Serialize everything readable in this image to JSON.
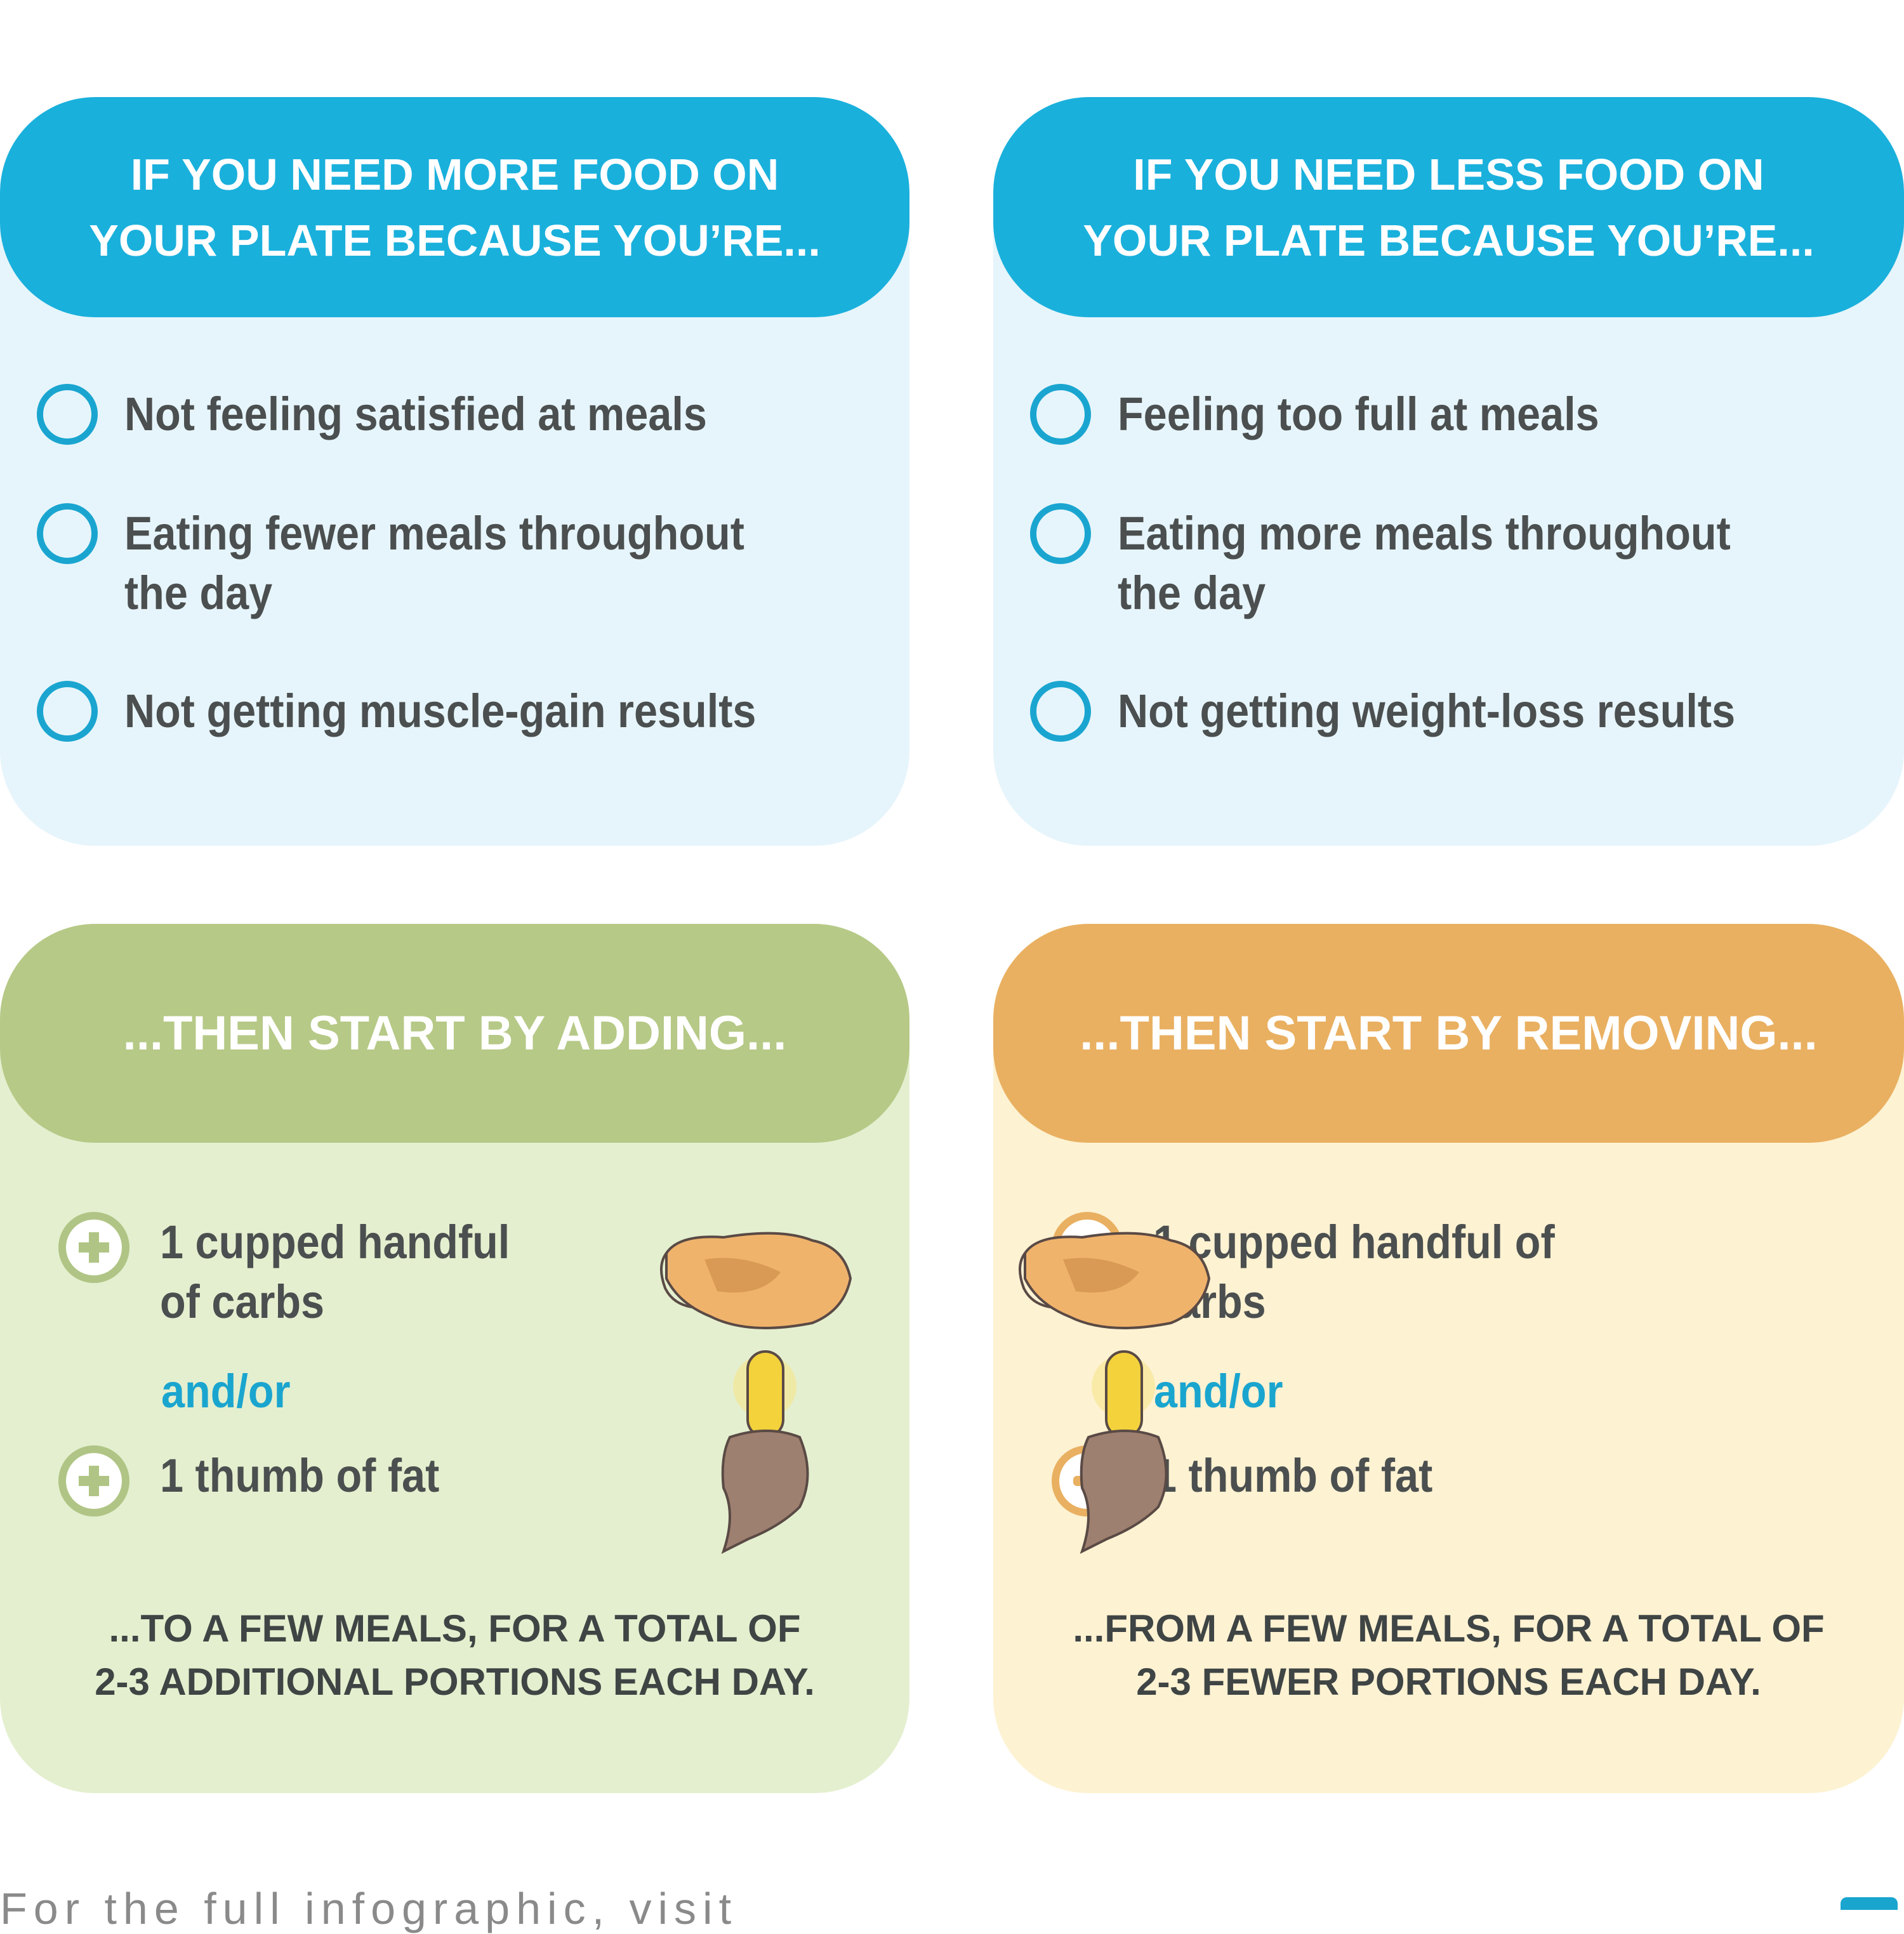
{
  "colors": {
    "blue_header": "#1ab0dc",
    "blue_body": "#e6f5fb",
    "green_header": "#b6c987",
    "green_body": "#e4efcf",
    "orange_header": "#e9b061",
    "orange_body": "#fdf2d2",
    "accent": "#1aa5cf",
    "text": "#4b4f4f"
  },
  "more": {
    "header": [
      "IF YOU NEED MORE FOOD ON",
      "YOUR PLATE BECAUSE YOU’RE..."
    ],
    "items": [
      {
        "icon": "circle-checkbox-icon",
        "lines": [
          "Not feeling satisfied at meals"
        ]
      },
      {
        "icon": "circle-checkbox-icon",
        "lines": [
          "Eating fewer meals throughout",
          "the day"
        ]
      },
      {
        "icon": "circle-checkbox-icon",
        "lines": [
          "Not getting muscle-gain results"
        ]
      }
    ]
  },
  "less": {
    "header": [
      "IF YOU NEED LESS FOOD ON",
      "YOUR PLATE BECAUSE YOU’RE..."
    ],
    "items": [
      {
        "icon": "circle-checkbox-icon",
        "lines": [
          "Feeling too full at meals"
        ]
      },
      {
        "icon": "circle-checkbox-icon",
        "lines": [
          "Eating more meals throughout",
          "the day"
        ]
      },
      {
        "icon": "circle-checkbox-icon",
        "lines": [
          "Not getting weight-loss results"
        ]
      }
    ]
  },
  "adding": {
    "header": "...THEN START BY ADDING...",
    "item1": [
      "1 cupped handful",
      "of carbs"
    ],
    "andor": "and/or",
    "item2": "1 thumb of fat",
    "footer": [
      "...TO A FEW MEALS, FOR A TOTAL OF",
      "2-3 ADDITIONAL PORTIONS EACH DAY."
    ],
    "icon": "plus-icon"
  },
  "removing": {
    "header": "...THEN START BY REMOVING...",
    "item1": [
      "1 cupped handful of",
      "carbs"
    ],
    "andor": "and/or",
    "item2": "1 thumb of fat",
    "footer": [
      "...FROM A FEW MEALS, FOR A TOTAL OF",
      "2-3 FEWER PORTIONS EACH DAY."
    ],
    "icon": "minus-icon"
  },
  "bottom_text": "For the full infographic, visit"
}
